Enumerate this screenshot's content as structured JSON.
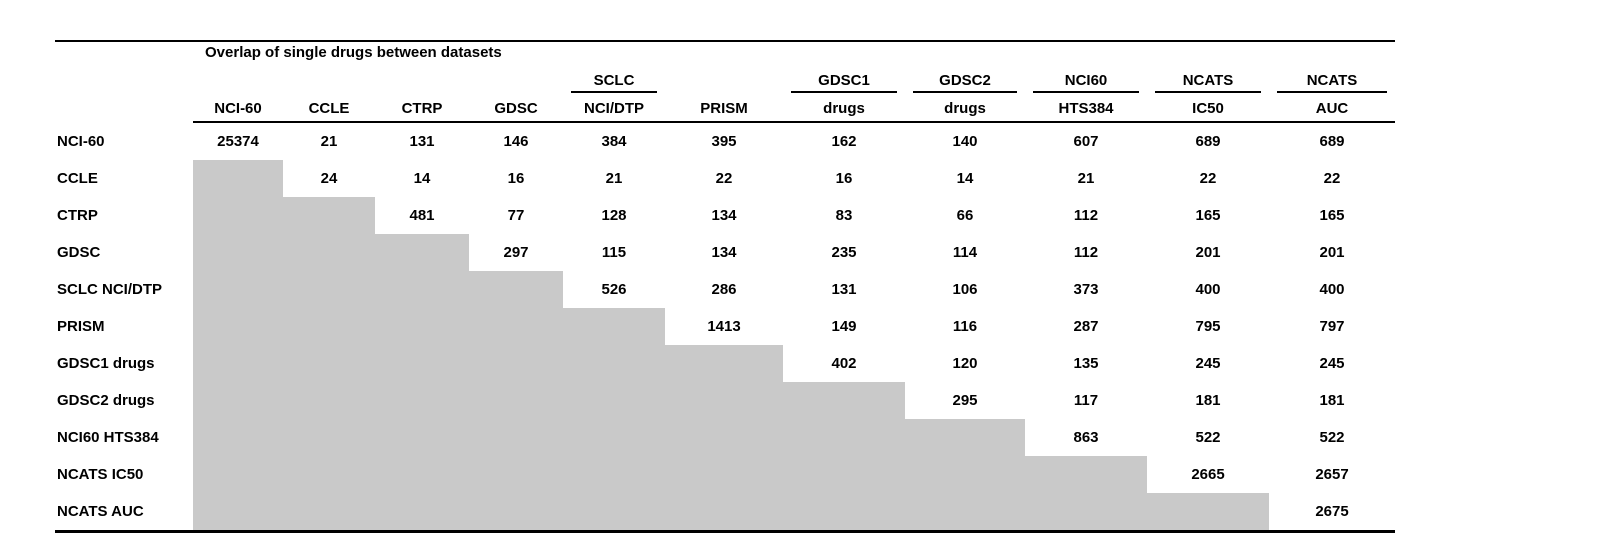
{
  "chart_data": {
    "type": "table",
    "title": "Overlap of single drugs between datasets",
    "column_groups": [
      "",
      "",
      "",
      "",
      "SCLC",
      "",
      "GDSC1",
      "GDSC2",
      "NCI60",
      "NCATS",
      "NCATS"
    ],
    "column_labels": [
      "NCI-60",
      "CCLE",
      "CTRP",
      "GDSC",
      "NCI/DTP",
      "PRISM",
      "drugs",
      "drugs",
      "HTS384",
      "IC50",
      "AUC"
    ],
    "row_labels": [
      "NCI-60",
      "CCLE",
      "CTRP",
      "GDSC",
      "SCLC NCI/DTP",
      "PRISM",
      "GDSC1 drugs",
      "GDSC2 drugs",
      "NCI60 HTS384",
      "NCATS IC50",
      "NCATS AUC"
    ],
    "matrix": [
      [
        25374,
        21,
        131,
        146,
        384,
        395,
        162,
        140,
        607,
        689,
        689
      ],
      [
        null,
        24,
        14,
        16,
        21,
        22,
        16,
        14,
        21,
        22,
        22
      ],
      [
        null,
        null,
        481,
        77,
        128,
        134,
        83,
        66,
        112,
        165,
        165
      ],
      [
        null,
        null,
        null,
        297,
        115,
        134,
        235,
        114,
        112,
        201,
        201
      ],
      [
        null,
        null,
        null,
        null,
        526,
        286,
        131,
        106,
        373,
        400,
        400
      ],
      [
        null,
        null,
        null,
        null,
        null,
        1413,
        149,
        116,
        287,
        795,
        797
      ],
      [
        null,
        null,
        null,
        null,
        null,
        null,
        402,
        120,
        135,
        245,
        245
      ],
      [
        null,
        null,
        null,
        null,
        null,
        null,
        null,
        295,
        117,
        181,
        181
      ],
      [
        null,
        null,
        null,
        null,
        null,
        null,
        null,
        null,
        863,
        522,
        522
      ],
      [
        null,
        null,
        null,
        null,
        null,
        null,
        null,
        null,
        null,
        2665,
        2657
      ],
      [
        null,
        null,
        null,
        null,
        null,
        null,
        null,
        null,
        null,
        null,
        2675
      ]
    ],
    "shaded_region": "lower-triangle",
    "grid": false,
    "legend_position": "none"
  },
  "colors": {
    "shaded_cell": "#c9c9c9",
    "rule": "#000000",
    "background": "#ffffff",
    "text": "#000000"
  }
}
